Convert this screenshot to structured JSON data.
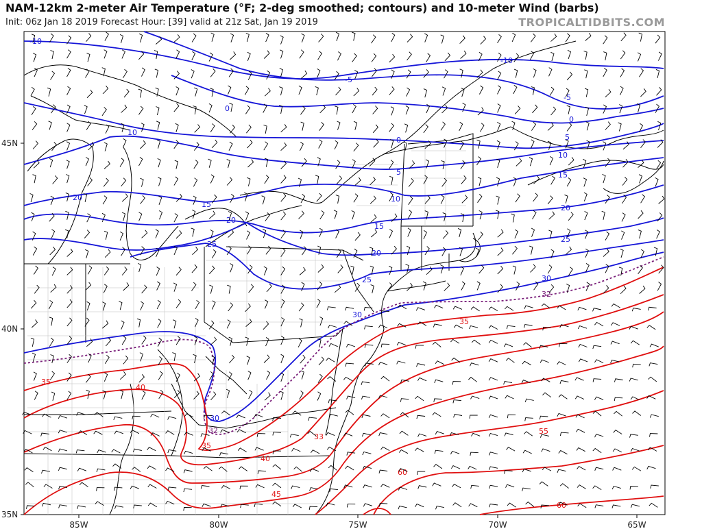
{
  "header": {
    "title": "NAM-12km 2-meter Air Temperature (°F; 2-deg smoothed; contours) and 10-meter Wind (barbs)",
    "subtitle": "Init: 06z Jan 18 2019   Forecast Hour: [39]   valid at 21z Sat, Jan 19 2019",
    "brand": "TROPICALTIDBITS.COM"
  },
  "axes": {
    "lon_ticks": [
      "85W",
      "80W",
      "75W",
      "70W",
      "65W"
    ],
    "lat_ticks": [
      "45N",
      "40N",
      "35N"
    ]
  },
  "contours": {
    "cold_color": "#1616d8",
    "freezing_color": "#7a1f7a",
    "warm_color": "#e01010",
    "labels": [
      {
        "id": "c1",
        "text": "-10"
      },
      {
        "id": "c2",
        "text": "-10"
      },
      {
        "id": "c3",
        "text": "-5"
      },
      {
        "id": "c4",
        "text": "-5"
      },
      {
        "id": "c5",
        "text": "0"
      },
      {
        "id": "c6",
        "text": "0"
      },
      {
        "id": "c7",
        "text": "0"
      },
      {
        "id": "c8",
        "text": "5"
      },
      {
        "id": "c9",
        "text": "5"
      },
      {
        "id": "c10",
        "text": "10"
      },
      {
        "id": "c11",
        "text": "10"
      },
      {
        "id": "c12",
        "text": "10"
      },
      {
        "id": "c13",
        "text": "15"
      },
      {
        "id": "c14",
        "text": "15"
      },
      {
        "id": "c15",
        "text": "15"
      },
      {
        "id": "c16",
        "text": "20"
      },
      {
        "id": "c17",
        "text": "20"
      },
      {
        "id": "c18",
        "text": "20"
      },
      {
        "id": "c19",
        "text": "20"
      },
      {
        "id": "c20",
        "text": "25"
      },
      {
        "id": "c21",
        "text": "25"
      },
      {
        "id": "c22",
        "text": "25"
      },
      {
        "id": "c23",
        "text": "30"
      },
      {
        "id": "c24",
        "text": "30"
      },
      {
        "id": "c25",
        "text": "30"
      },
      {
        "id": "c26",
        "text": "32"
      },
      {
        "id": "c27",
        "text": "32"
      },
      {
        "id": "c28",
        "text": "35"
      },
      {
        "id": "c29",
        "text": "35"
      },
      {
        "id": "c30",
        "text": "35"
      },
      {
        "id": "c31",
        "text": "40"
      },
      {
        "id": "c32",
        "text": "40"
      },
      {
        "id": "c33",
        "text": "45"
      },
      {
        "id": "c34",
        "text": "55"
      },
      {
        "id": "c35",
        "text": "60"
      },
      {
        "id": "c36",
        "text": "60"
      },
      {
        "id": "c37",
        "text": "33"
      }
    ]
  }
}
